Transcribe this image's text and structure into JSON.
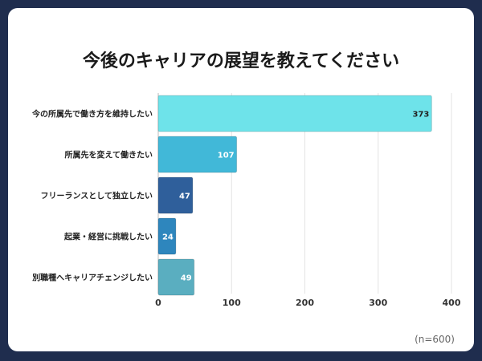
{
  "chart_data": {
    "type": "bar",
    "orientation": "horizontal",
    "title": "今後のキャリアの展望を教えてください",
    "categories": [
      "今の所属先で働き方を維持したい",
      "所属先を変えて働きたい",
      "フリーランスとして独立したい",
      "起業・経営に挑戦したい",
      "別職種へキャリアチェンジしたい"
    ],
    "values": [
      373,
      107,
      47,
      24,
      49
    ],
    "colors": [
      "#6ee3ea",
      "#41b8d8",
      "#2f5f9b",
      "#2e86bd",
      "#5aaec0"
    ],
    "xlim": [
      0,
      400
    ],
    "xticks": [
      0,
      100,
      200,
      300,
      400
    ],
    "grid": true,
    "xlabel": "",
    "ylabel": ""
  },
  "note": "(n=600)"
}
